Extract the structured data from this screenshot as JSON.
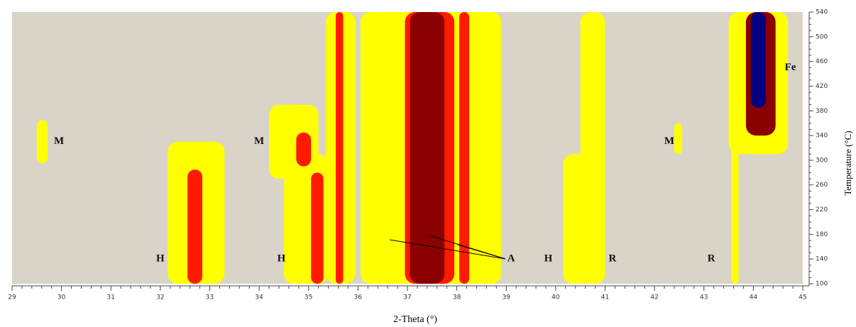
{
  "chart_data": {
    "type": "contour",
    "x_label": "2-Theta (°)",
    "y_label": "Temperature (°C)",
    "y_axis_side": "right",
    "xlim": [
      29,
      45
    ],
    "xticks": [
      29,
      30,
      31,
      32,
      33,
      34,
      35,
      36,
      37,
      38,
      39,
      40,
      41,
      42,
      43,
      44,
      45
    ],
    "ylim": [
      100,
      540
    ],
    "yticks": [
      100,
      140,
      180,
      220,
      260,
      300,
      340,
      380,
      420,
      460,
      500,
      540
    ],
    "background": "#d9d4c7",
    "bands": [
      {
        "color": "#ffff00",
        "x": [
          29.5,
          29.72
        ],
        "y": [
          295,
          365
        ]
      },
      {
        "color": "#ffff00",
        "x": [
          32.15,
          33.3
        ],
        "y": [
          100,
          330
        ]
      },
      {
        "color": "#ff1a00",
        "x": [
          32.55,
          32.85
        ],
        "y": [
          100,
          285
        ]
      },
      {
        "color": "#ffff00",
        "x": [
          34.5,
          35.4
        ],
        "y": [
          100,
          310
        ]
      },
      {
        "color": "#ffff00",
        "x": [
          34.2,
          35.2
        ],
        "y": [
          270,
          390
        ]
      },
      {
        "color": "#ff1a00",
        "x": [
          34.75,
          35.05
        ],
        "y": [
          290,
          345
        ]
      },
      {
        "color": "#ff1a00",
        "x": [
          35.05,
          35.3
        ],
        "y": [
          100,
          280
        ]
      },
      {
        "color": "#ffff00",
        "x": [
          35.35,
          35.95
        ],
        "y": [
          100,
          540
        ]
      },
      {
        "color": "#ff1a00",
        "x": [
          35.55,
          35.7
        ],
        "y": [
          100,
          540
        ]
      },
      {
        "color": "#ffff00",
        "x": [
          36.05,
          38.9
        ],
        "y": [
          100,
          540
        ]
      },
      {
        "color": "#ff1a00",
        "x": [
          36.95,
          37.95
        ],
        "y": [
          100,
          540
        ]
      },
      {
        "color": "#8b0000",
        "x": [
          37.05,
          37.75
        ],
        "y": [
          100,
          540
        ]
      },
      {
        "color": "#ff1a00",
        "x": [
          38.05,
          38.25
        ],
        "y": [
          100,
          540
        ]
      },
      {
        "color": "#ffff00",
        "x": [
          40.15,
          40.7
        ],
        "y": [
          100,
          310
        ]
      },
      {
        "color": "#ffff00",
        "x": [
          40.5,
          41.0
        ],
        "y": [
          100,
          540
        ]
      },
      {
        "color": "#ffff00",
        "x": [
          42.4,
          42.56
        ],
        "y": [
          310,
          360
        ]
      },
      {
        "color": "#ffff00",
        "x": [
          43.55,
          43.7
        ],
        "y": [
          100,
          340
        ]
      },
      {
        "color": "#ffff00",
        "x": [
          43.5,
          44.7
        ],
        "y": [
          310,
          540
        ]
      },
      {
        "color": "#8b0000",
        "x": [
          43.85,
          44.45
        ],
        "y": [
          340,
          540
        ]
      },
      {
        "color": "#000080",
        "x": [
          43.95,
          44.25
        ],
        "y": [
          385,
          540
        ]
      }
    ],
    "annotations": [
      {
        "text": "M",
        "x": 29.95,
        "y": 330
      },
      {
        "text": "M",
        "x": 34.0,
        "y": 330
      },
      {
        "text": "M",
        "x": 42.3,
        "y": 330
      },
      {
        "text": "H",
        "x": 32.0,
        "y": 140
      },
      {
        "text": "H",
        "x": 34.45,
        "y": 140
      },
      {
        "text": "A",
        "x": 39.1,
        "y": 140
      },
      {
        "text": "H",
        "x": 39.85,
        "y": 140
      },
      {
        "text": "R",
        "x": 41.15,
        "y": 140
      },
      {
        "text": "R",
        "x": 43.15,
        "y": 140
      },
      {
        "text": "Fe",
        "x": 44.75,
        "y": 450
      }
    ]
  }
}
